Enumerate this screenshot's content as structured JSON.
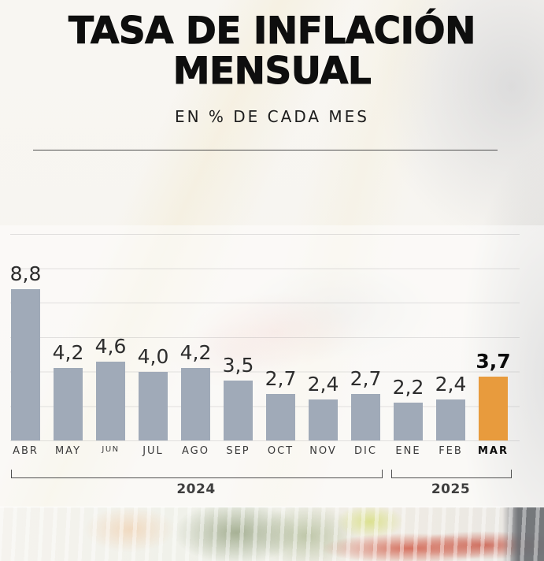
{
  "header": {
    "title": "TASA DE INFLACIÓN MENSUAL",
    "subtitle": "EN % DE CADA MES"
  },
  "chart_data": {
    "type": "bar",
    "title": "TASA DE INFLACIÓN MENSUAL",
    "subtitle": "EN % DE CADA MES",
    "unit": "%",
    "categories": [
      "ABR",
      "MAY",
      "JUN",
      "JUL",
      "AGO",
      "SEP",
      "OCT",
      "NOV",
      "DIC",
      "ENE",
      "FEB",
      "MAR"
    ],
    "values": [
      8.8,
      4.2,
      4.6,
      4.0,
      4.2,
      3.5,
      2.7,
      2.4,
      2.7,
      2.2,
      2.4,
      3.7
    ],
    "value_labels": [
      "8,8",
      "4,2",
      "4,6",
      "4,0",
      "4,2",
      "3,5",
      "2,7",
      "2,4",
      "2,7",
      "2,2",
      "2,4",
      "3,7"
    ],
    "highlight_index": 11,
    "ylim": [
      0,
      12
    ],
    "gridline_step": 2,
    "grid": true,
    "legend": "none",
    "colors": {
      "bar": "#a0aab8",
      "highlight": "#e89b3d"
    },
    "year_groups": [
      {
        "label": "2024",
        "start": "ABR",
        "end": "DIC"
      },
      {
        "label": "2025",
        "start": "ENE",
        "end": "MAR"
      }
    ]
  }
}
